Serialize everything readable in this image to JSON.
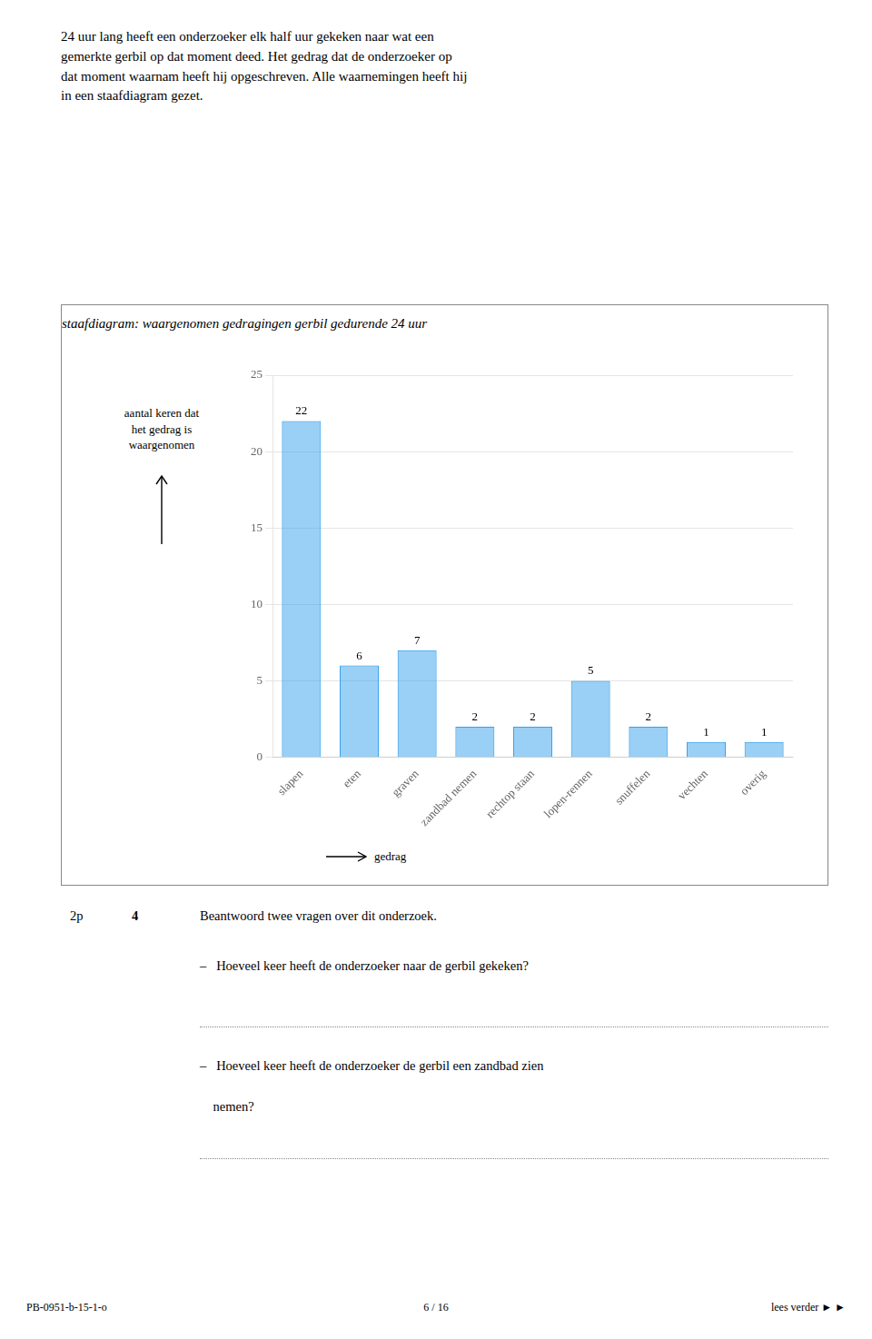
{
  "chart_data": {
    "type": "bar",
    "title": "staafdiagram: waargenomen gedragingen gerbil gedurende 24 uur",
    "ylabel": [
      "aantal keren dat",
      "het gedrag is",
      "waargenomen"
    ],
    "xlabel": "gedrag",
    "categories": [
      "slapen",
      "eten",
      "graven",
      "zandbad nemen",
      "rechtop staan",
      "lopen-rennen",
      "snuffelen",
      "vechten",
      "overig"
    ],
    "values": [
      22,
      6,
      7,
      2,
      2,
      5,
      2,
      1,
      1
    ],
    "ylim": [
      0,
      25
    ],
    "yticks": [
      0,
      5,
      10,
      15,
      20,
      25
    ],
    "grid": true,
    "data_labels": true,
    "annotations": [
      "24 uur lang heeft een onderzoeker elk half uur gekeken naar wat een\ngemerkte gerbil op dat moment deed. Het gedrag dat de onderzoeker op\ndat moment waarnam heeft hij opgeschreven. Alle waarnemingen heeft hij\nin een staafdiagram gezet.",
      "2p",
      "4",
      "Beantwoord twee vragen over dit onderzoek.",
      "–   Hoeveel keer heeft de onderzoeker naar de gerbil gekeken?",
      "–   Hoeveel keer heeft de onderzoeker de gerbil een zandbad zien",
      "    nemen?",
      "PB-0951-b-15-1-o",
      "6 / 16",
      "lees verder ► ►"
    ]
  }
}
